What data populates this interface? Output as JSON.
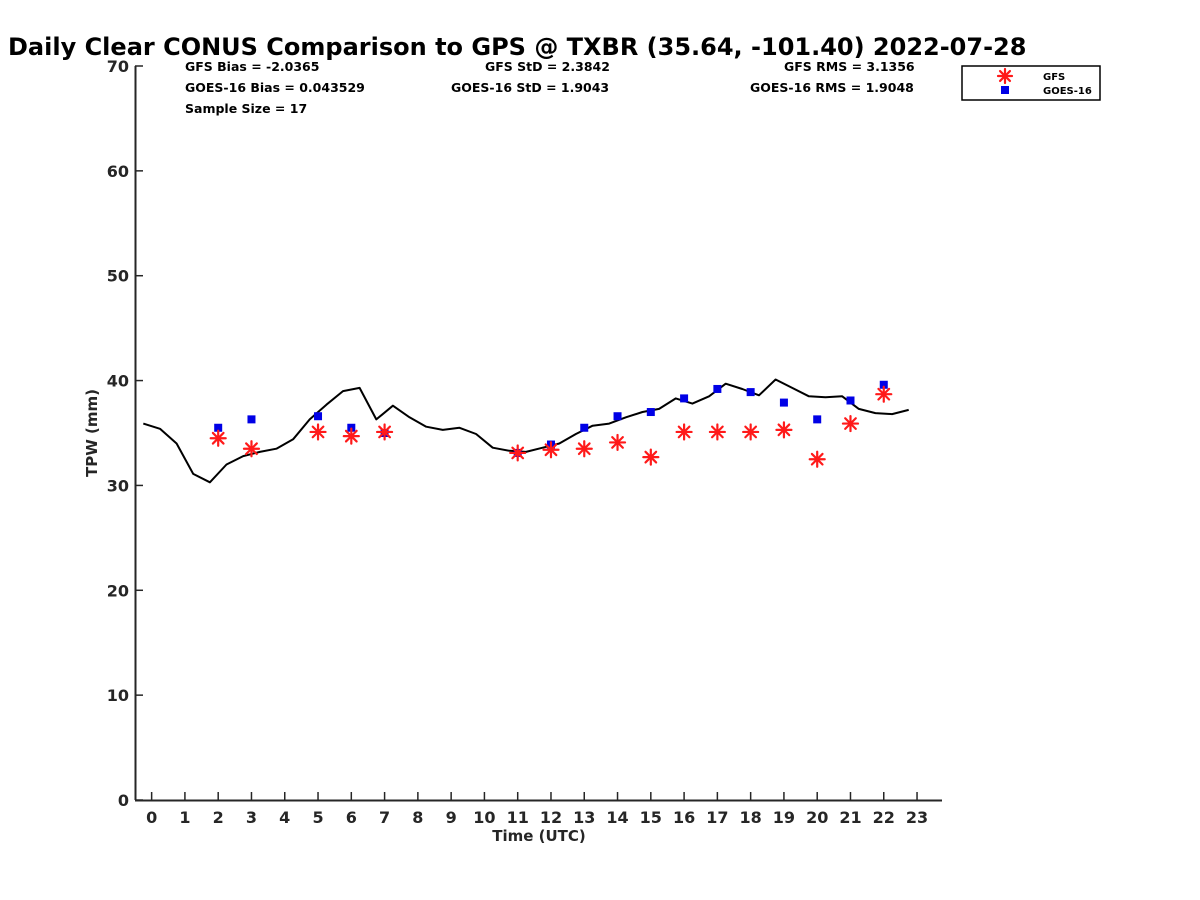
{
  "chart_data": {
    "type": "scatter",
    "title": "Daily Clear CONUS Comparison to GPS @ TXBR (35.64, -101.40) 2022-07-28",
    "xlabel": "Time (UTC)",
    "ylabel": "TPW (mm)",
    "xlim": [
      -0.5,
      23.75
    ],
    "ylim": [
      0,
      70
    ],
    "x_ticks": [
      0,
      1,
      2,
      3,
      4,
      5,
      6,
      7,
      8,
      9,
      10,
      11,
      12,
      13,
      14,
      15,
      16,
      17,
      18,
      19,
      20,
      21,
      22,
      23
    ],
    "y_ticks": [
      0,
      10,
      20,
      30,
      40,
      50,
      60,
      70
    ],
    "grid": false,
    "legend_position": "top-right",
    "stats": [
      {
        "key": "gfs_bias",
        "text": "GFS Bias = -2.0365"
      },
      {
        "key": "gfs_std",
        "text": "GFS StD = 2.3842"
      },
      {
        "key": "gfs_rms",
        "text": "GFS RMS = 3.1356"
      },
      {
        "key": "goes_bias",
        "text": "GOES-16 Bias = 0.043529"
      },
      {
        "key": "goes_std",
        "text": "GOES-16 StD = 1.9043"
      },
      {
        "key": "goes_rms",
        "text": "GOES-16 RMS = 1.9048"
      },
      {
        "key": "sample_size",
        "text": "Sample Size = 17"
      }
    ],
    "series": [
      {
        "name": "GPS",
        "kind": "line",
        "color": "#000000",
        "x": [
          -0.25,
          0.25,
          0.75,
          1.25,
          1.75,
          2.25,
          2.75,
          3.25,
          3.75,
          4.25,
          4.75,
          5.25,
          5.75,
          6.25,
          6.75,
          7.25,
          7.75,
          8.25,
          8.75,
          9.25,
          9.75,
          10.25,
          10.75,
          11.25,
          11.75,
          12.25,
          12.75,
          13.25,
          13.75,
          14.25,
          14.75,
          15.25,
          15.75,
          16.25,
          16.75,
          17.25,
          17.75,
          18.25,
          18.75,
          19.25,
          19.75,
          20.25,
          20.75,
          21.25,
          21.75,
          22.25,
          22.75
        ],
        "y": [
          35.9,
          35.4,
          34.0,
          31.1,
          30.3,
          32.0,
          32.8,
          33.2,
          33.5,
          34.4,
          36.3,
          37.7,
          39.0,
          39.3,
          36.3,
          37.6,
          36.5,
          35.6,
          35.3,
          35.5,
          34.9,
          33.6,
          33.3,
          33.2,
          33.6,
          34.0,
          34.9,
          35.7,
          35.9,
          36.5,
          37.0,
          37.3,
          38.3,
          37.8,
          38.5,
          39.7,
          39.2,
          38.6,
          40.1,
          39.3,
          38.5,
          38.4,
          38.5,
          37.3,
          36.9,
          36.8,
          37.2
        ]
      },
      {
        "name": "GFS",
        "kind": "marker",
        "marker": "asterisk",
        "color": "#ff1a1a",
        "x": [
          2,
          3,
          5,
          6,
          7,
          11,
          12,
          13,
          14,
          15,
          16,
          17,
          18,
          19,
          20,
          21,
          22
        ],
        "y": [
          34.5,
          33.5,
          35.1,
          34.7,
          35.1,
          33.1,
          33.4,
          33.5,
          34.1,
          32.7,
          35.1,
          35.1,
          35.1,
          35.3,
          32.5,
          35.9,
          38.7
        ]
      },
      {
        "name": "GOES-16",
        "kind": "marker",
        "marker": "square",
        "color": "#0000e6",
        "x": [
          2,
          3,
          5,
          6,
          7,
          11,
          12,
          13,
          14,
          15,
          16,
          17,
          18,
          19,
          20,
          21,
          22
        ],
        "y": [
          35.5,
          36.3,
          36.6,
          35.5,
          35.0,
          33.1,
          33.9,
          35.5,
          36.6,
          37.0,
          38.3,
          39.2,
          38.9,
          37.9,
          36.3,
          38.1,
          39.6
        ]
      }
    ]
  }
}
